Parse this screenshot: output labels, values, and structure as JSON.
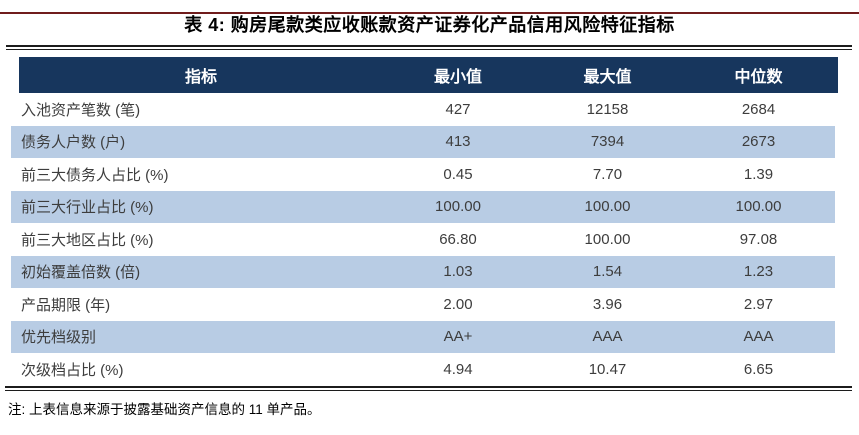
{
  "report": {
    "title": "表 4: 购房尾款类应收账款资产证券化产品信用风险特征指标",
    "note": "注: 上表信息来源于披露基础资产信息的 11 单产品。",
    "accent_colors": {
      "top_rule": "#701C1C",
      "header_bg": "#17365D",
      "header_text": "#FFFFFF",
      "row_stripe": "#B8CCE4",
      "body_text": "#3D3D3D"
    }
  },
  "table": {
    "columns": [
      "指标",
      "最小值",
      "最大值",
      "中位数"
    ],
    "rows": [
      [
        "入池资产笔数 (笔)",
        "427",
        "12158",
        "2684"
      ],
      [
        "债务人户数 (户)",
        "413",
        "7394",
        "2673"
      ],
      [
        "前三大债务人占比 (%)",
        "0.45",
        "7.70",
        "1.39"
      ],
      [
        "前三大行业占比 (%)",
        "100.00",
        "100.00",
        "100.00"
      ],
      [
        "前三大地区占比 (%)",
        "66.80",
        "100.00",
        "97.08"
      ],
      [
        "初始覆盖倍数 (倍)",
        "1.03",
        "1.54",
        "1.23"
      ],
      [
        "产品期限 (年)",
        "2.00",
        "3.96",
        "2.97"
      ],
      [
        "优先档级别",
        "AA+",
        "AAA",
        "AAA"
      ],
      [
        "次级档占比 (%)",
        "4.94",
        "10.47",
        "6.65"
      ]
    ]
  }
}
